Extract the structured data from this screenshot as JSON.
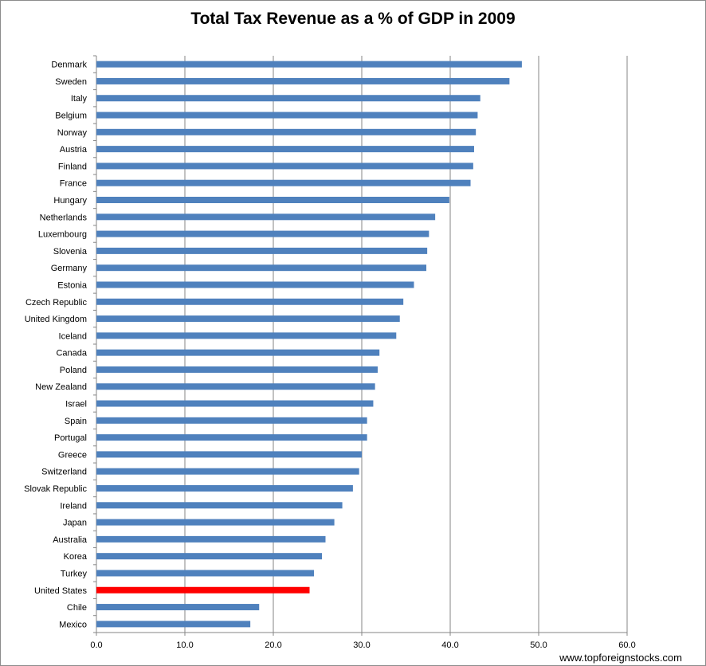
{
  "chart_data": {
    "type": "bar",
    "orientation": "horizontal",
    "title": "Total Tax Revenue as a % of GDP in 2009",
    "xlabel": "",
    "ylabel": "",
    "xlim": [
      0,
      60
    ],
    "x_ticks": [
      "0.0",
      "10.0",
      "20.0",
      "30.0",
      "40.0",
      "50.0",
      "60.0"
    ],
    "grid": "vertical",
    "legend": "none",
    "categories": [
      "Denmark",
      "Sweden",
      "Italy",
      "Belgium",
      "Norway",
      "Austria",
      "Finland",
      "France",
      "Hungary",
      "Netherlands",
      "Luxembourg",
      "Slovenia",
      "Germany",
      "Estonia",
      "Czech Republic",
      "United Kingdom",
      "Iceland",
      "Canada",
      "Poland",
      "New Zealand",
      "Israel",
      "Spain",
      "Portugal",
      "Greece",
      "Switzerland",
      "Slovak Republic",
      "Ireland",
      "Japan",
      "Australia",
      "Korea",
      "Turkey",
      "United States",
      "Chile",
      "Mexico"
    ],
    "values": [
      48.1,
      46.7,
      43.4,
      43.1,
      42.9,
      42.7,
      42.6,
      42.3,
      39.9,
      38.3,
      37.6,
      37.4,
      37.3,
      35.9,
      34.7,
      34.3,
      33.9,
      32.0,
      31.8,
      31.5,
      31.3,
      30.6,
      30.6,
      30.0,
      29.7,
      29.0,
      27.8,
      26.9,
      25.9,
      25.5,
      24.6,
      24.1,
      18.4,
      17.4
    ],
    "bar_color": "#4f81bd",
    "highlight": {
      "category": "United States",
      "color": "#ff0000"
    }
  },
  "footer": {
    "source": "www.topforeignstocks.com"
  }
}
